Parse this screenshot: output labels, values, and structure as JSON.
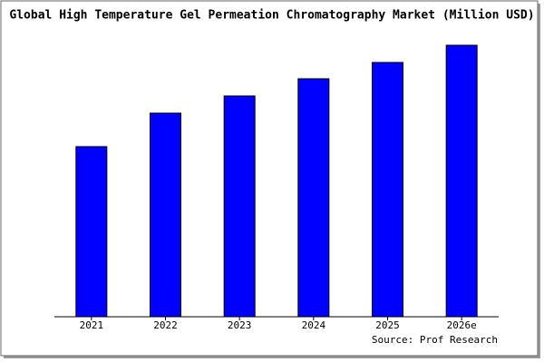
{
  "chart_data": {
    "type": "bar",
    "title": "Global High Temperature Gel Permeation Chromatography Market (Million USD)",
    "categories": [
      "2021",
      "2022",
      "2023",
      "2024",
      "2025",
      "2026e"
    ],
    "values": [
      188,
      225,
      244,
      263,
      281,
      300
    ],
    "color": "#0000ff",
    "ylim": [
      0,
      302
    ],
    "source": "Source: Prof Research"
  }
}
